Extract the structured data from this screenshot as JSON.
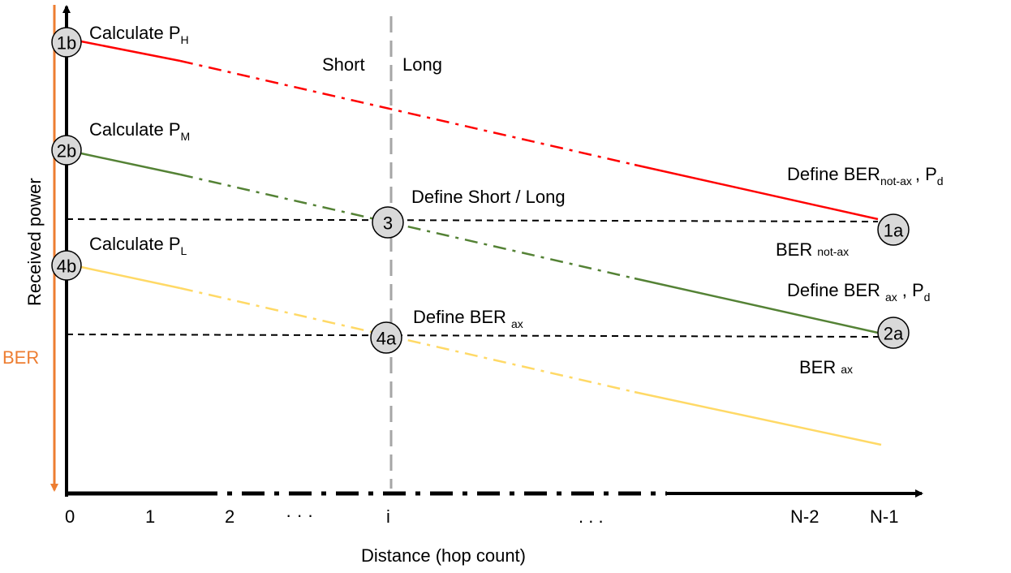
{
  "axes": {
    "y_label": "Received power",
    "x_label": "Distance (hop count)",
    "ber_label": "BER",
    "ticks": [
      "0",
      "1",
      "2",
      "· · ·",
      "i",
      ". . .",
      "N-2",
      "N-1"
    ]
  },
  "regions": {
    "short": "Short",
    "long": "Long"
  },
  "labels": {
    "calc_h": {
      "main": "Calculate P",
      "sub": "H"
    },
    "calc_m": {
      "main": "Calculate P",
      "sub": "M"
    },
    "calc_l": {
      "main": "Calculate P",
      "sub": "L"
    },
    "define_short_long": "Define Short / Long",
    "define_ber_ax": {
      "main": "Define BER",
      "sub": "ax"
    },
    "define_ber_not_ax": {
      "main": "Define BER",
      "sub": "not-ax",
      "tail": ", P",
      "tail_sub": "d"
    },
    "define_ber_ax_pd": {
      "main": "Define BER",
      "sub": "ax",
      "tail": ", P",
      "tail_sub": "d"
    },
    "ber_not_ax": {
      "main": "BER",
      "sub": "not-ax"
    },
    "ber_ax": {
      "main": "BER",
      "sub": "ax"
    }
  },
  "nodes": {
    "n1b": "1b",
    "n2b": "2b",
    "n4b": "4b",
    "n3": "3",
    "n4a": "4a",
    "n1a": "1a",
    "n2a": "2a"
  },
  "colors": {
    "high": "#ff0000",
    "medium": "#548235",
    "low": "#ffd966",
    "ber_axis": "#ed7d31",
    "divider": "#a6a6a6",
    "node_fill": "#d9d9d9"
  }
}
